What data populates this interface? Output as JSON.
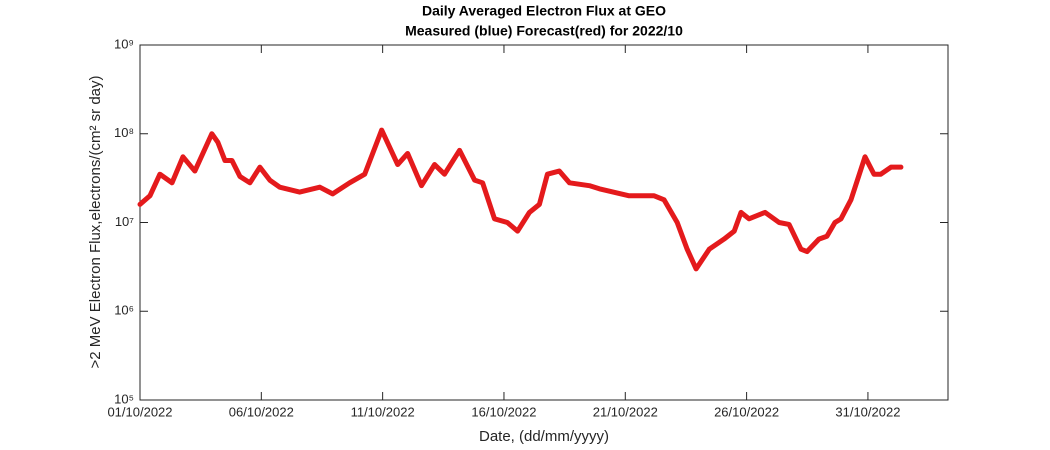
{
  "chart_data": {
    "type": "line",
    "title": "Daily Averaged Electron Flux at GEO",
    "subtitle": "Measured (blue) Forecast(red) for 2022/10",
    "xlabel": "Date, (dd/mm/yyyy)",
    "ylabel": ">2 MeV Electron Flux,electrons/(cm² sr day)",
    "log_y": true,
    "xlim": [
      1,
      34.3
    ],
    "ylim": [
      100000,
      1000000000
    ],
    "xticks": [
      {
        "value": 1,
        "label": "01/10/2022"
      },
      {
        "value": 6,
        "label": "06/10/2022"
      },
      {
        "value": 11,
        "label": "11/10/2022"
      },
      {
        "value": 16,
        "label": "16/10/2022"
      },
      {
        "value": 21,
        "label": "21/10/2022"
      },
      {
        "value": 26,
        "label": "26/10/2022"
      },
      {
        "value": 31,
        "label": "31/10/2022"
      }
    ],
    "yticks": [
      {
        "value": 100000,
        "label": "10⁵"
      },
      {
        "value": 1000000,
        "label": "10⁶"
      },
      {
        "value": 10000000,
        "label": "10⁷"
      },
      {
        "value": 100000000,
        "label": "10⁸"
      },
      {
        "value": 1000000000,
        "label": "10⁹"
      }
    ],
    "x": [
      1.0,
      1.41,
      1.82,
      2.32,
      2.77,
      3.26,
      3.96,
      4.21,
      4.5,
      4.79,
      5.12,
      5.53,
      5.94,
      6.35,
      6.76,
      7.58,
      8.41,
      8.94,
      9.64,
      10.26,
      10.96,
      11.62,
      12.03,
      12.6,
      13.14,
      13.55,
      14.17,
      14.79,
      15.12,
      15.61,
      16.14,
      16.56,
      17.05,
      17.46,
      17.79,
      18.28,
      18.7,
      19.52,
      19.93,
      21.16,
      22.19,
      22.6,
      23.14,
      23.55,
      23.92,
      24.46,
      25.07,
      25.49,
      25.77,
      26.1,
      26.76,
      27.34,
      27.75,
      28.24,
      28.49,
      28.98,
      29.31,
      29.64,
      29.89,
      30.3,
      30.88,
      31.25,
      31.53,
      31.95,
      32.36
    ],
    "series": [
      {
        "name": "Forecast",
        "color": "#e41a1c",
        "values": [
          16000000,
          20000000,
          35000000,
          28000000,
          55000000,
          38000000,
          100000000,
          80000000,
          50000000,
          50000000,
          33000000,
          28000000,
          42000000,
          30000000,
          25000000,
          22000000,
          25000000,
          21000000,
          28000000,
          35000000,
          110000000,
          45000000,
          60000000,
          26000000,
          45000000,
          35000000,
          65000000,
          30000000,
          28000000,
          11000000,
          10000000,
          8000000,
          13000000,
          16000000,
          35000000,
          38000000,
          28000000,
          26000000,
          24000000,
          20000000,
          20000000,
          18000000,
          10000000,
          5000000,
          3000000,
          5000000,
          6500000,
          8000000,
          13000000,
          11000000,
          13000000,
          10000000,
          9500000,
          5000000,
          4700000,
          6500000,
          7000000,
          10000000,
          11000000,
          18000000,
          55000000,
          35000000,
          35000000,
          42000000,
          42000000
        ]
      }
    ]
  }
}
